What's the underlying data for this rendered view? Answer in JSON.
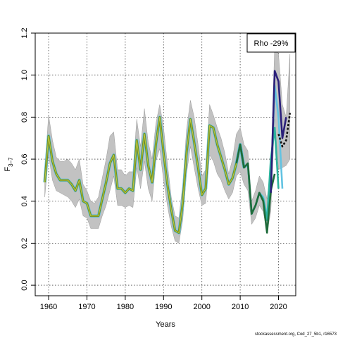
{
  "chart_data": {
    "type": "line",
    "title": "",
    "xlabel": "Years",
    "ylabel_main": "F",
    "ylabel_sub": "3–7",
    "xlim": [
      1956.5,
      2024.5
    ],
    "ylim": [
      -0.05,
      1.2
    ],
    "x_ticks": [
      1960,
      1970,
      1980,
      1990,
      2000,
      2010,
      2020
    ],
    "y_ticks": [
      0.0,
      0.2,
      0.4,
      0.6,
      0.8,
      1.0,
      1.2
    ],
    "y_tick_labels": [
      "0.0",
      "0.2",
      "0.4",
      "0.6",
      "0.8",
      "1.0",
      "1.2"
    ],
    "grid": true,
    "legend_text": "Rho -29%",
    "legend_position": "top-right",
    "footer": "stockassessment.org, Cod_27_5b1, r16573",
    "colors": {
      "band": "#c2c2c2",
      "band_edge": "#8c8c8c",
      "main_line": "#6b8e23",
      "main_highlight": "#c2c940",
      "peel_dark_blue": "#2a1f7a",
      "peel_light_blue": "#63c3e2",
      "peel_teal": "#2bb39d",
      "peel_green": "#1e6b3a",
      "peel_black": "#111111",
      "grid": "#444444"
    },
    "band": {
      "x": [
        1959,
        1960,
        1961,
        1962,
        1963,
        1964,
        1965,
        1966,
        1967,
        1968,
        1969,
        1970,
        1971,
        1972,
        1973,
        1974,
        1975,
        1976,
        1977,
        1978,
        1979,
        1980,
        1981,
        1982,
        1983,
        1984,
        1985,
        1986,
        1987,
        1988,
        1989,
        1990,
        1991,
        1992,
        1993,
        1994,
        1995,
        1996,
        1997,
        1998,
        1999,
        2000,
        2001,
        2002,
        2003,
        2004,
        2005,
        2006,
        2007,
        2008,
        2009,
        2010,
        2011,
        2012,
        2013,
        2014,
        2015,
        2016,
        2017,
        2018,
        2019,
        2020,
        2021,
        2022,
        2023
      ],
      "upper": [
        0.55,
        0.81,
        0.69,
        0.61,
        0.59,
        0.59,
        0.6,
        0.58,
        0.55,
        0.6,
        0.48,
        0.45,
        0.4,
        0.39,
        0.42,
        0.51,
        0.6,
        0.71,
        0.73,
        0.55,
        0.55,
        0.52,
        0.54,
        0.54,
        0.79,
        0.66,
        0.84,
        0.68,
        0.6,
        0.77,
        0.86,
        0.75,
        0.58,
        0.42,
        0.33,
        0.32,
        0.48,
        0.74,
        0.88,
        0.8,
        0.67,
        0.52,
        0.55,
        0.86,
        0.81,
        0.75,
        0.7,
        0.63,
        0.53,
        0.6,
        0.72,
        0.75,
        0.67,
        0.64,
        0.4,
        0.45,
        0.52,
        0.49,
        0.41,
        0.55,
        1.14,
        1.1,
        0.86,
        0.8,
        1.1
      ],
      "lower": [
        0.42,
        0.62,
        0.5,
        0.45,
        0.44,
        0.43,
        0.42,
        0.4,
        0.37,
        0.41,
        0.33,
        0.32,
        0.27,
        0.27,
        0.27,
        0.33,
        0.38,
        0.45,
        0.52,
        0.38,
        0.38,
        0.37,
        0.38,
        0.37,
        0.56,
        0.46,
        0.59,
        0.46,
        0.4,
        0.59,
        0.65,
        0.5,
        0.38,
        0.28,
        0.21,
        0.2,
        0.31,
        0.53,
        0.66,
        0.56,
        0.46,
        0.38,
        0.39,
        0.62,
        0.59,
        0.53,
        0.5,
        0.45,
        0.41,
        0.44,
        0.52,
        0.54,
        0.48,
        0.45,
        0.29,
        0.32,
        0.38,
        0.35,
        0.25,
        0.35,
        0.79,
        0.55,
        0.56,
        0.57,
        0.6
      ]
    },
    "series": [
      {
        "name": "",
        "role": "main",
        "color": "#6b8e23",
        "x": [
          1959,
          1960,
          1961,
          1962,
          1963,
          1964,
          1965,
          1966,
          1967,
          1968,
          1969,
          1970,
          1971,
          1972,
          1973,
          1974,
          1975,
          1976,
          1977,
          1978,
          1979,
          1980,
          1981,
          1982,
          1983,
          1984,
          1985,
          1986,
          1987,
          1988,
          1989,
          1990,
          1991,
          1992,
          1993,
          1994,
          1995,
          1996,
          1997,
          1998,
          1999,
          2000,
          2001,
          2002,
          2003,
          2004,
          2005,
          2006,
          2007,
          2008,
          2009,
          2010,
          2011
        ],
        "values": [
          0.49,
          0.71,
          0.59,
          0.53,
          0.5,
          0.5,
          0.5,
          0.48,
          0.45,
          0.5,
          0.4,
          0.39,
          0.33,
          0.33,
          0.33,
          0.41,
          0.49,
          0.58,
          0.62,
          0.46,
          0.46,
          0.44,
          0.46,
          0.45,
          0.69,
          0.55,
          0.72,
          0.57,
          0.49,
          0.67,
          0.8,
          0.63,
          0.48,
          0.36,
          0.26,
          0.25,
          0.39,
          0.63,
          0.79,
          0.68,
          0.56,
          0.43,
          0.46,
          0.76,
          0.75,
          0.67,
          0.61,
          0.55,
          0.48,
          0.51,
          0.58,
          0.67,
          0.56
        ]
      },
      {
        "name": "",
        "role": "peel",
        "color": "#63c3e2",
        "x": [
          2009,
          2010,
          2011,
          2012,
          2013,
          2014,
          2015,
          2016,
          2017,
          2018,
          2019,
          2020,
          2021
        ],
        "values": [
          0.58,
          0.67,
          0.56,
          0.57,
          0.34,
          0.38,
          0.44,
          0.42,
          0.33,
          0.46,
          0.95,
          0.8,
          0.46
        ]
      },
      {
        "name": "",
        "role": "peel",
        "color": "#2bb39d",
        "x": [
          2009,
          2010,
          2011,
          2012,
          2013,
          2014,
          2015,
          2016,
          2017,
          2018,
          2019,
          2020
        ],
        "values": [
          0.58,
          0.67,
          0.56,
          0.58,
          0.34,
          0.38,
          0.44,
          0.41,
          0.31,
          0.6,
          0.75,
          0.46
        ]
      },
      {
        "name": "",
        "role": "peel",
        "color": "#1e6b3a",
        "x": [
          2009,
          2010,
          2011,
          2012,
          2013,
          2014,
          2015,
          2016,
          2017,
          2018,
          2019
        ],
        "values": [
          0.58,
          0.67,
          0.56,
          0.58,
          0.34,
          0.38,
          0.44,
          0.4,
          0.25,
          0.45,
          0.53
        ]
      },
      {
        "name": "",
        "role": "peel",
        "color": "#2a1f7a",
        "x": [
          2018,
          2019,
          2020,
          2021,
          2022
        ],
        "values": [
          0.44,
          1.02,
          0.97,
          0.7,
          0.8
        ]
      },
      {
        "name": "",
        "role": "peel-dashed",
        "color": "#111111",
        "x": [
          2020,
          2021,
          2022,
          2023
        ],
        "values": [
          0.72,
          0.66,
          0.69,
          0.82
        ]
      }
    ]
  }
}
